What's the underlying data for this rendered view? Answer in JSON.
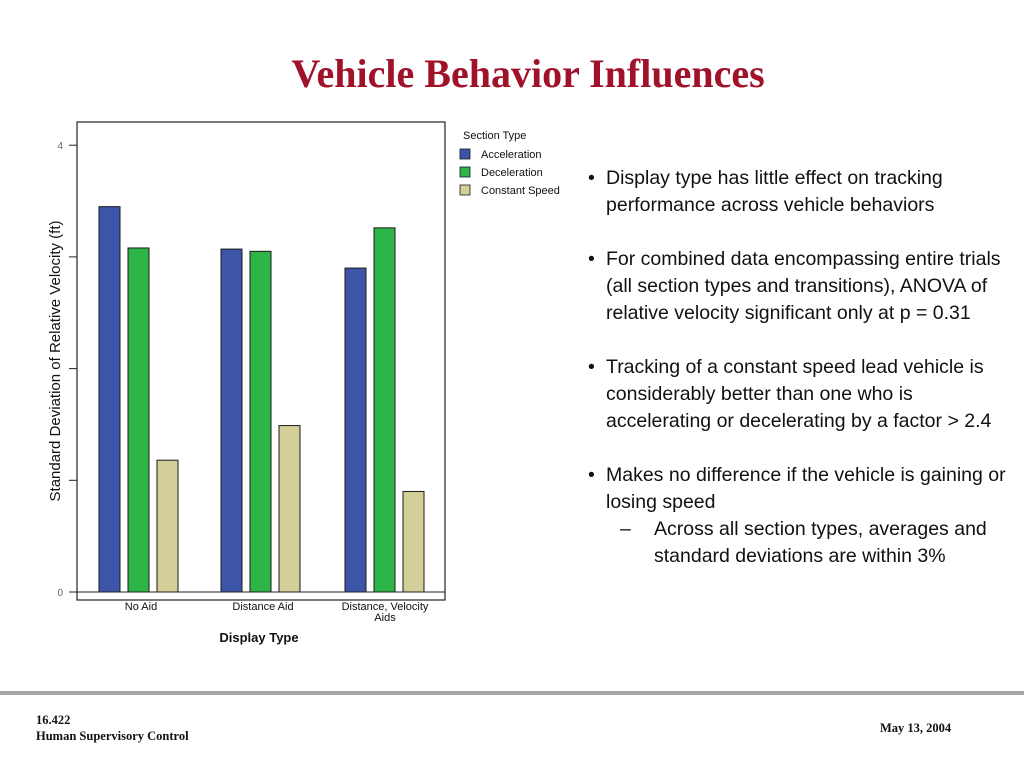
{
  "slide": {
    "title": "Vehicle Behavior Influences"
  },
  "bullets": [
    {
      "text": "Display type has little effect on tracking performance across vehicle behaviors",
      "sub": []
    },
    {
      "text": "For combined data encompassing entire trials (all section types and transitions), ANOVA of relative velocity significant only at p = 0.31",
      "sub": []
    },
    {
      "text": "Tracking of a constant speed lead vehicle is considerably better than one who is accelerating or decelerating by a factor > 2.4",
      "sub": []
    },
    {
      "text": "Makes no difference if the vehicle is gaining or losing speed",
      "sub": [
        "Across all section types, averages and standard deviations are within 3%"
      ]
    }
  ],
  "footer": {
    "course": "16.422",
    "course_name": "Human Supervisory Control",
    "date": "May 13, 2004"
  },
  "chart_data": {
    "type": "bar",
    "categories": [
      "No Aid",
      "Distance Aid",
      "Distance, Velocity Aids"
    ],
    "series": [
      {
        "name": "Acceleration",
        "color": "#3d55a8",
        "values": [
          3.45,
          3.07,
          2.9
        ]
      },
      {
        "name": "Deceleration",
        "color": "#2db548",
        "values": [
          3.08,
          3.05,
          3.26
        ]
      },
      {
        "name": "Constant Speed",
        "color": "#d4cf98",
        "values": [
          1.18,
          1.49,
          0.9
        ]
      }
    ],
    "xlabel": "Display Type",
    "ylabel": "Standard Deviation of Relative Velocity (ft)",
    "legend_title": "Section Type",
    "legend_position": "top-right",
    "ylim": [
      0,
      4.2
    ],
    "yticks": [
      0,
      1,
      2,
      3,
      4
    ],
    "ytick_labels": [
      "0",
      "",
      "",
      "",
      "4"
    ],
    "grid": false
  }
}
